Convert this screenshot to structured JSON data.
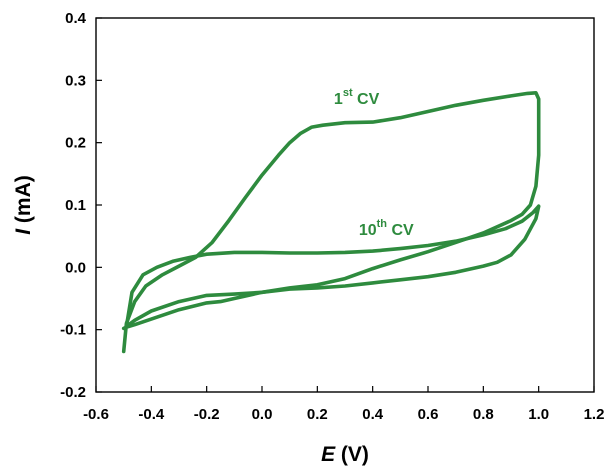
{
  "chart_data": {
    "type": "line",
    "xlabel": {
      "var": "E",
      "unit": " (V)"
    },
    "ylabel": {
      "var": "I",
      "unit": " (mA)"
    },
    "xlim": [
      -0.6,
      1.2
    ],
    "ylim": [
      -0.2,
      0.4
    ],
    "xticks": [
      "-0.6",
      "-0.4",
      "-0.2",
      "0.0",
      "0.2",
      "0.4",
      "0.6",
      "0.8",
      "1.0",
      "1.2"
    ],
    "yticks": [
      "-0.2",
      "-0.1",
      "0.0",
      "0.1",
      "0.2",
      "0.3",
      "0.4"
    ],
    "grid": false,
    "legend": "none",
    "series_color": "#2e8b3e",
    "series": [
      {
        "label_num": "1",
        "label_sup": "st",
        "label_rest": " CV",
        "label_at": [
          0.26,
          0.262
        ],
        "x": [
          -0.5,
          -0.49,
          -0.46,
          -0.42,
          -0.36,
          -0.3,
          -0.24,
          -0.18,
          -0.12,
          -0.06,
          0.0,
          0.06,
          0.1,
          0.14,
          0.18,
          0.22,
          0.3,
          0.4,
          0.5,
          0.6,
          0.7,
          0.8,
          0.9,
          0.96,
          0.99,
          1.0,
          1.0,
          0.99,
          0.97,
          0.94,
          0.9,
          0.8,
          0.7,
          0.6,
          0.5,
          0.4,
          0.3,
          0.2,
          0.1,
          0.0,
          -0.1,
          -0.15,
          -0.2,
          -0.3,
          -0.4,
          -0.46,
          -0.49,
          -0.5
        ],
        "y": [
          -0.135,
          -0.09,
          -0.055,
          -0.03,
          -0.012,
          0.002,
          0.016,
          0.04,
          0.075,
          0.112,
          0.148,
          0.18,
          0.2,
          0.215,
          0.225,
          0.228,
          0.232,
          0.233,
          0.24,
          0.25,
          0.26,
          0.268,
          0.275,
          0.279,
          0.28,
          0.27,
          0.18,
          0.13,
          0.1,
          0.085,
          0.075,
          0.055,
          0.04,
          0.025,
          0.012,
          -0.002,
          -0.018,
          -0.028,
          -0.033,
          -0.04,
          -0.05,
          -0.055,
          -0.057,
          -0.068,
          -0.083,
          -0.092,
          -0.096,
          -0.098
        ]
      },
      {
        "label_num": "10",
        "label_sup": "th",
        "label_rest": " CV",
        "label_at": [
          0.35,
          0.052
        ],
        "x": [
          -0.49,
          -0.47,
          -0.43,
          -0.38,
          -0.32,
          -0.26,
          -0.2,
          -0.1,
          0.0,
          0.1,
          0.2,
          0.3,
          0.4,
          0.5,
          0.6,
          0.7,
          0.8,
          0.88,
          0.94,
          0.98,
          1.0,
          0.99,
          0.95,
          0.9,
          0.85,
          0.8,
          0.7,
          0.6,
          0.5,
          0.4,
          0.3,
          0.2,
          0.1,
          0.0,
          -0.1,
          -0.2,
          -0.3,
          -0.4,
          -0.46,
          -0.49
        ],
        "y": [
          -0.095,
          -0.04,
          -0.012,
          0.0,
          0.01,
          0.016,
          0.021,
          0.024,
          0.024,
          0.023,
          0.023,
          0.024,
          0.026,
          0.03,
          0.035,
          0.042,
          0.052,
          0.062,
          0.074,
          0.088,
          0.098,
          0.078,
          0.045,
          0.02,
          0.008,
          0.002,
          -0.008,
          -0.015,
          -0.02,
          -0.025,
          -0.03,
          -0.033,
          -0.035,
          -0.04,
          -0.043,
          -0.045,
          -0.055,
          -0.07,
          -0.085,
          -0.095
        ]
      }
    ]
  }
}
